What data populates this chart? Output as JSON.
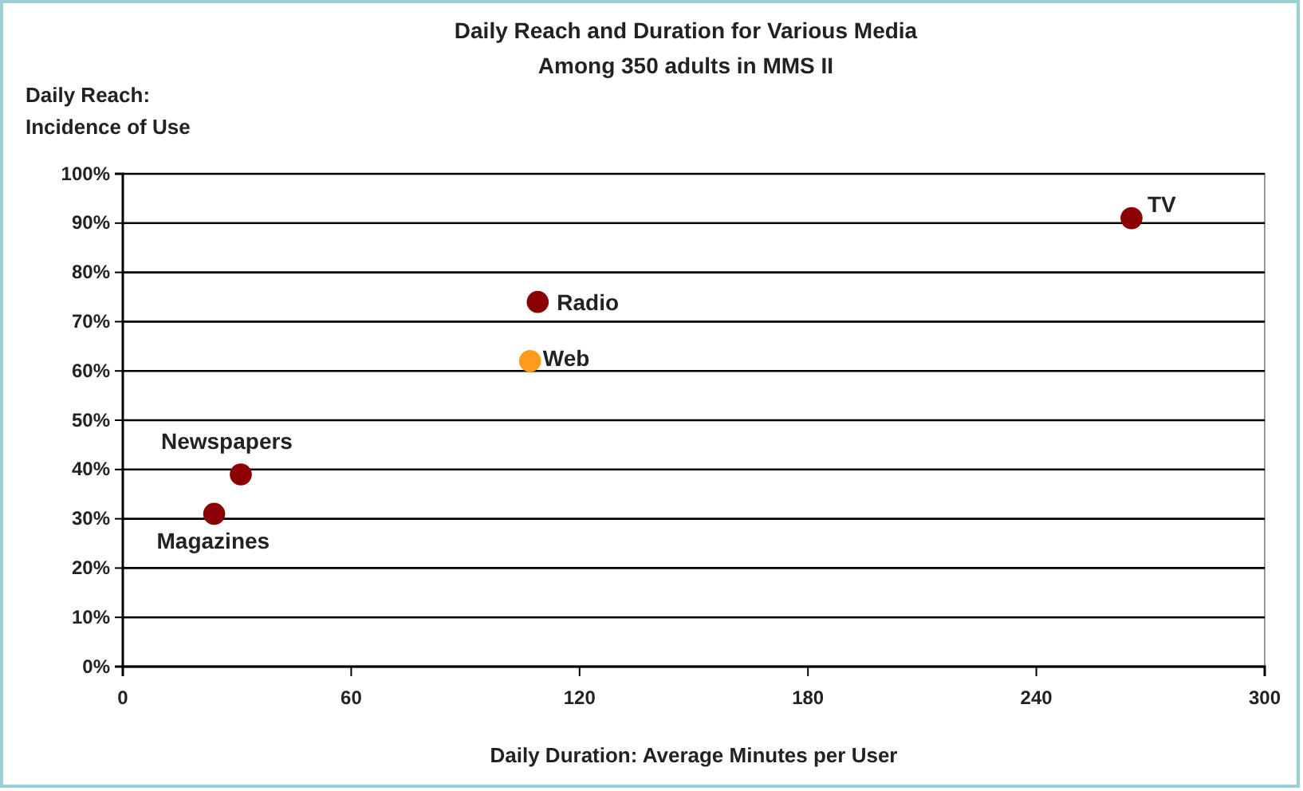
{
  "chart_data": {
    "type": "scatter",
    "title": "Daily Reach and Duration for Various Media",
    "subtitle": "Among 350 adults in MMS II",
    "xlabel": "Daily Duration: Average Minutes per User",
    "ylabel": "Daily Reach: Incidence of Use",
    "xlim": [
      0,
      300
    ],
    "xticks": [
      0,
      60,
      120,
      180,
      240,
      300
    ],
    "ylim": [
      0,
      1
    ],
    "yticks": [
      {
        "value": 0,
        "label": "0%"
      },
      {
        "value": 0.1,
        "label": "10%"
      },
      {
        "value": 0.2,
        "label": "20%"
      },
      {
        "value": 0.3,
        "label": "30%"
      },
      {
        "value": 0.4,
        "label": "40%"
      },
      {
        "value": 0.5,
        "label": "50%"
      },
      {
        "value": 0.6,
        "label": "60%"
      },
      {
        "value": 0.7,
        "label": "70%"
      },
      {
        "value": 0.8,
        "label": "80%"
      },
      {
        "value": 0.9,
        "label": "90%"
      },
      {
        "value": 1,
        "label": "100%"
      }
    ],
    "grid": "y",
    "marker": "circle",
    "series": [
      {
        "name": "TV",
        "color": "#8b0000",
        "x": [
          265
        ],
        "values": [
          0.91
        ]
      },
      {
        "name": "Radio",
        "color": "#8b0000",
        "x": [
          109
        ],
        "values": [
          0.74
        ]
      },
      {
        "name": "Web",
        "color": "#ff9b1a",
        "x": [
          107
        ],
        "values": [
          0.62
        ]
      },
      {
        "name": "Newspapers",
        "color": "#8b0000",
        "x": [
          31
        ],
        "values": [
          0.39
        ]
      },
      {
        "name": "Magazines",
        "color": "#8b0000",
        "x": [
          24
        ],
        "values": [
          0.31
        ]
      }
    ]
  }
}
